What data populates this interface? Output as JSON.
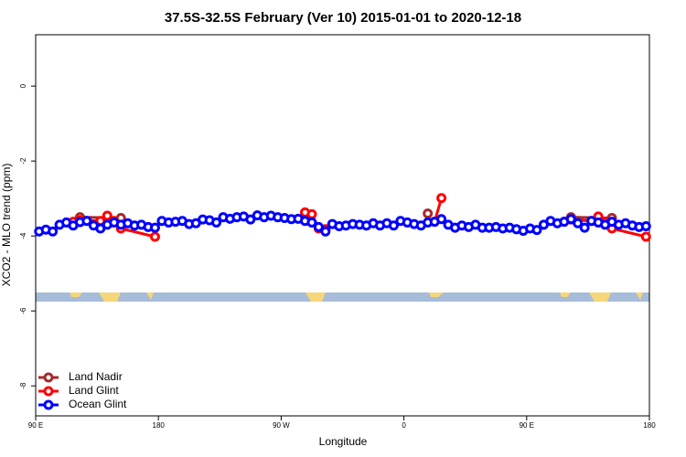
{
  "chart_data": {
    "type": "line",
    "title": "37.5S-32.5S February (Ver 10)   2015-01-01 to 2020-12-18",
    "x_label": "Longitude",
    "y_label": "XCO2 - MLO trend (ppm)",
    "xlim": [
      90,
      540
    ],
    "xticks": [
      {
        "value": 90,
        "label": "90 E"
      },
      {
        "value": 180,
        "label": "180"
      },
      {
        "value": 270,
        "label": "90 W"
      },
      {
        "value": 360,
        "label": "0"
      },
      {
        "value": 450,
        "label": "90 E"
      },
      {
        "value": 540,
        "label": "180"
      }
    ],
    "ylim": [
      -8.8,
      1.37
    ],
    "yticks": [
      0,
      -2,
      -4,
      -6,
      -8
    ],
    "legend": "bottom-left",
    "series": [
      {
        "name": "Land Nadir",
        "color": "#a52a2a",
        "x": [
          122.5,
          152.5,
          260,
          377.5,
          430,
          482.5,
          512.5
        ],
        "values": [
          -3.5,
          -3.52,
          null,
          -3.4,
          null,
          -3.5,
          -3.52
        ]
      },
      {
        "name": "Land Glint",
        "color": "#ff0000",
        "x": [
          117.5,
          122.5,
          137.5,
          142.5,
          147.5,
          152.5,
          177.5,
          230,
          287.5,
          292.5,
          297.5,
          302.5,
          340,
          382.5,
          387.5,
          430,
          477.5,
          482.5,
          497.5,
          502.5,
          507.5,
          512.5,
          537.5
        ],
        "values": [
          -3.62,
          -3.58,
          -3.6,
          -3.46,
          -3.6,
          -3.8,
          -4.02,
          null,
          -3.37,
          -3.42,
          -3.8,
          -3.82,
          null,
          -3.62,
          -2.99,
          null,
          -3.62,
          -3.56,
          -3.6,
          -3.48,
          -3.62,
          -3.8,
          -4.02
        ]
      },
      {
        "name": "Ocean Glint",
        "color": "#0000ff",
        "x": [
          92.5,
          97.5,
          102.5,
          107.5,
          112.5,
          117.5,
          122.5,
          127.5,
          132.5,
          137.5,
          142.5,
          147.5,
          152.5,
          157.5,
          162.5,
          167.5,
          172.5,
          177.5,
          182.5,
          187.5,
          192.5,
          197.5,
          202.5,
          207.5,
          212.5,
          217.5,
          222.5,
          227.5,
          232.5,
          237.5,
          242.5,
          247.5,
          252.5,
          257.5,
          262.5,
          267.5,
          272.5,
          277.5,
          282.5,
          287.5,
          292.5,
          297.5,
          302.5,
          307.5,
          312.5,
          317.5,
          322.5,
          327.5,
          332.5,
          337.5,
          342.5,
          347.5,
          352.5,
          357.5,
          362.5,
          367.5,
          372.5,
          377.5,
          382.5,
          387.5,
          392.5,
          397.5,
          402.5,
          407.5,
          412.5,
          417.5,
          422.5,
          427.5,
          432.5,
          437.5,
          442.5,
          447.5,
          452.5,
          457.5,
          462.5,
          467.5,
          472.5,
          477.5,
          482.5,
          487.5,
          492.5,
          497.5,
          502.5,
          507.5,
          512.5,
          517.5,
          522.5,
          527.5,
          532.5,
          537.5
        ],
        "values": [
          -3.88,
          -3.83,
          -3.88,
          -3.7,
          -3.64,
          -3.72,
          -3.63,
          -3.6,
          -3.72,
          -3.8,
          -3.7,
          -3.64,
          -3.7,
          -3.66,
          -3.72,
          -3.7,
          -3.76,
          -3.78,
          -3.6,
          -3.64,
          -3.62,
          -3.6,
          -3.68,
          -3.66,
          -3.56,
          -3.58,
          -3.64,
          -3.5,
          -3.54,
          -3.5,
          -3.48,
          -3.56,
          -3.45,
          -3.5,
          -3.46,
          -3.5,
          -3.52,
          -3.55,
          -3.54,
          -3.6,
          -3.64,
          -3.76,
          -3.88,
          -3.68,
          -3.74,
          -3.72,
          -3.68,
          -3.7,
          -3.72,
          -3.66,
          -3.72,
          -3.66,
          -3.72,
          -3.6,
          -3.64,
          -3.68,
          -3.72,
          -3.64,
          -3.62,
          -3.55,
          -3.7,
          -3.78,
          -3.72,
          -3.76,
          -3.7,
          -3.78,
          -3.78,
          -3.76,
          -3.8,
          -3.78,
          -3.82,
          -3.86,
          -3.8,
          -3.84,
          -3.7,
          -3.6,
          -3.66,
          -3.62,
          -3.55,
          -3.66,
          -3.78,
          -3.6,
          -3.64,
          -3.7,
          -3.62,
          -3.7,
          -3.66,
          -3.72,
          -3.76,
          -3.74
        ]
      }
    ]
  }
}
